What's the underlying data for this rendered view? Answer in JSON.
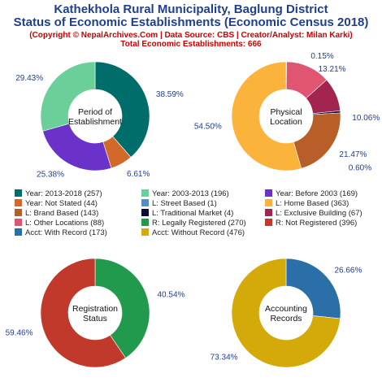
{
  "header": {
    "title_line1": "Kathekhola Rural Municipality, Baglung District",
    "title_line2": "Status of Economic Establishments (Economic Census 2018)",
    "copyright": "(Copyright © NepalArchives.Com | Data Source: CBS | Creator/Analyst: Milan Karki)",
    "total": "Total Economic Establishments: 666"
  },
  "chart_data": [
    {
      "type": "pie",
      "center_label": [
        "Period of",
        "Establishment"
      ],
      "slices": [
        {
          "label": "38.59%",
          "value": 38.59,
          "color": "#006d6a"
        },
        {
          "label": "6.61%",
          "value": 6.61,
          "color": "#d2692b"
        },
        {
          "label": "25.38%",
          "value": 25.38,
          "color": "#6a32c8"
        },
        {
          "label": "29.43%",
          "value": 29.43,
          "color": "#6bcf99"
        }
      ]
    },
    {
      "type": "pie",
      "center_label": [
        "Physical",
        "Location"
      ],
      "slices": [
        {
          "label": "0.15%",
          "value": 0.15,
          "color": "#4f8fc4"
        },
        {
          "label": "13.21%",
          "value": 13.21,
          "color": "#e05572"
        },
        {
          "label": "10.06%",
          "value": 10.06,
          "color": "#a1254f"
        },
        {
          "label": "0.60%",
          "value": 0.6,
          "color": "#0a0a3a"
        },
        {
          "label": "21.47%",
          "value": 21.47,
          "color": "#b85e28"
        },
        {
          "label": "54.50%",
          "value": 54.5,
          "color": "#fbb33c"
        }
      ]
    },
    {
      "type": "pie",
      "center_label": [
        "Registration",
        "Status"
      ],
      "slices": [
        {
          "label": "40.54%",
          "value": 40.54,
          "color": "#229a4e"
        },
        {
          "label": "59.46%",
          "value": 59.46,
          "color": "#c0392b"
        }
      ]
    },
    {
      "type": "pie",
      "center_label": [
        "Accounting",
        "Records"
      ],
      "slices": [
        {
          "label": "26.66%",
          "value": 26.66,
          "color": "#2a6fa8"
        },
        {
          "label": "73.34%",
          "value": 73.34,
          "color": "#d4aa0b"
        }
      ]
    }
  ],
  "legend": [
    {
      "label": "Year: 2013-2018 (257)",
      "color": "#006d6a"
    },
    {
      "label": "Year: 2003-2013 (196)",
      "color": "#6bcf99"
    },
    {
      "label": "Year: Before 2003 (169)",
      "color": "#6a32c8"
    },
    {
      "label": "Year: Not Stated (44)",
      "color": "#d2692b"
    },
    {
      "label": "L: Street Based (1)",
      "color": "#4f8fc4"
    },
    {
      "label": "L: Home Based (363)",
      "color": "#fbb33c"
    },
    {
      "label": "L: Brand Based (143)",
      "color": "#b85e28"
    },
    {
      "label": "L: Traditional Market (4)",
      "color": "#0a0a3a"
    },
    {
      "label": "L: Exclusive Building (67)",
      "color": "#a1254f"
    },
    {
      "label": "L: Other Locations (88)",
      "color": "#e05572"
    },
    {
      "label": "R: Legally Registered (270)",
      "color": "#229a4e"
    },
    {
      "label": "R: Not Registered (396)",
      "color": "#c0392b"
    },
    {
      "label": "Acct: With Record (173)",
      "color": "#2a6fa8"
    },
    {
      "label": "Acct: Without Record (476)",
      "color": "#d4aa0b"
    }
  ]
}
